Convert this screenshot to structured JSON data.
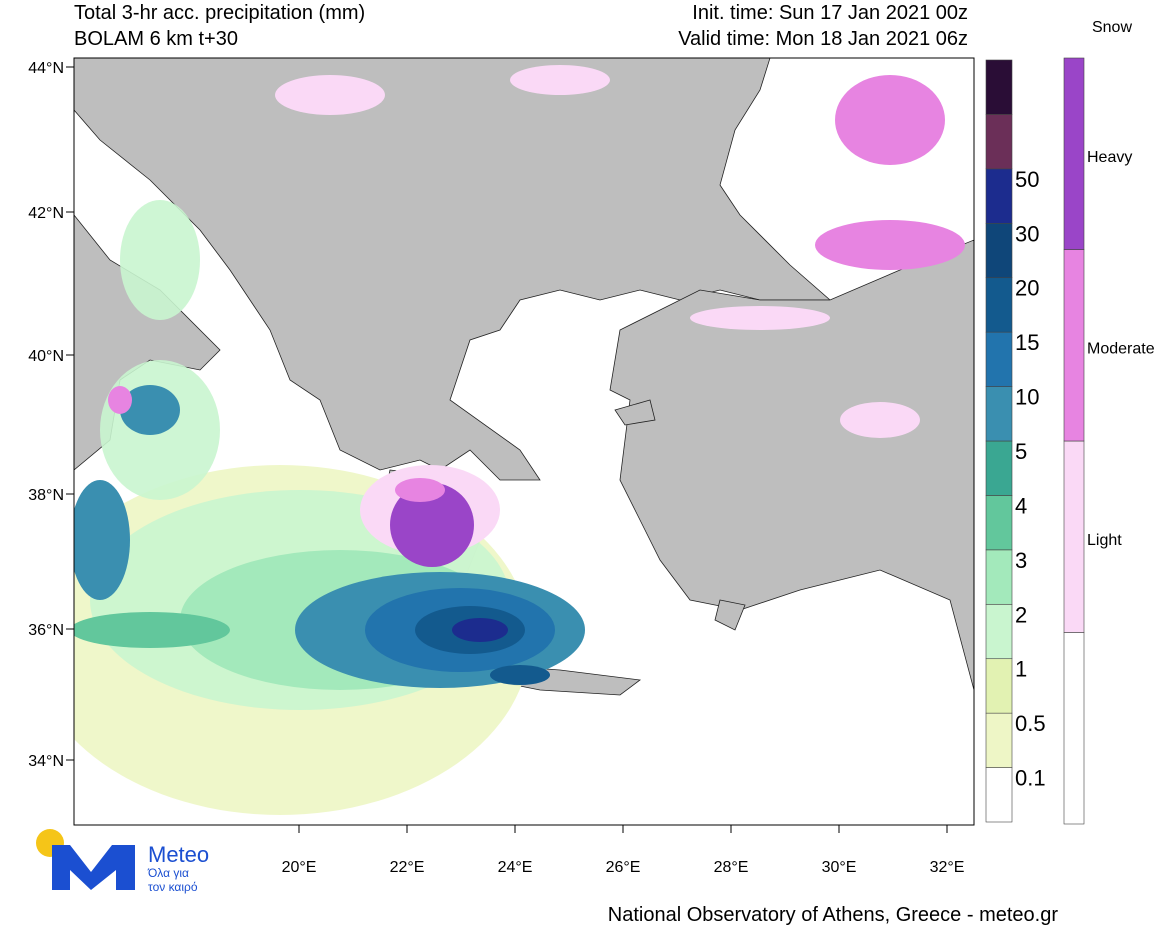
{
  "header": {
    "title": "Total 3-hr acc. precipitation (mm)",
    "subtitle": "BOLAM 6 km t+30",
    "init_time": "Init. time: Sun 17 Jan 2021 00z",
    "valid_time": "Valid time: Mon 18 Jan 2021 06z"
  },
  "map": {
    "lat_labels": [
      "44°N",
      "42°N",
      "40°N",
      "38°N",
      "36°N",
      "34°N"
    ],
    "lon_labels": [
      "20°E",
      "22°E",
      "24°E",
      "26°E",
      "28°E",
      "30°E",
      "32°E"
    ]
  },
  "precip_legend": {
    "levels": [
      "0.1",
      "0.5",
      "1",
      "2",
      "3",
      "4",
      "5",
      "10",
      "15",
      "20",
      "30",
      "50"
    ],
    "colors": [
      "#ffffff",
      "#eef6c6",
      "#e2f2b2",
      "#c9f5cf",
      "#a3e9bb",
      "#62c79c",
      "#3aa792",
      "#3a8fb0",
      "#2274ad",
      "#135a8e",
      "#0f4679",
      "#1c2c8e",
      "#6b2f58",
      "#2a0d36"
    ]
  },
  "snow_legend": {
    "title": "Snow",
    "levels": [
      "Light",
      "Moderate",
      "Heavy"
    ],
    "colors": [
      "#ffffff",
      "#fad9f6",
      "#e784e1",
      "#9a45c8"
    ]
  },
  "logo": {
    "name": "Meteo",
    "tagline_1": "Όλα για",
    "tagline_2": "τον καιρό"
  },
  "footer": "National Observatory of Athens, Greece - meteo.gr"
}
